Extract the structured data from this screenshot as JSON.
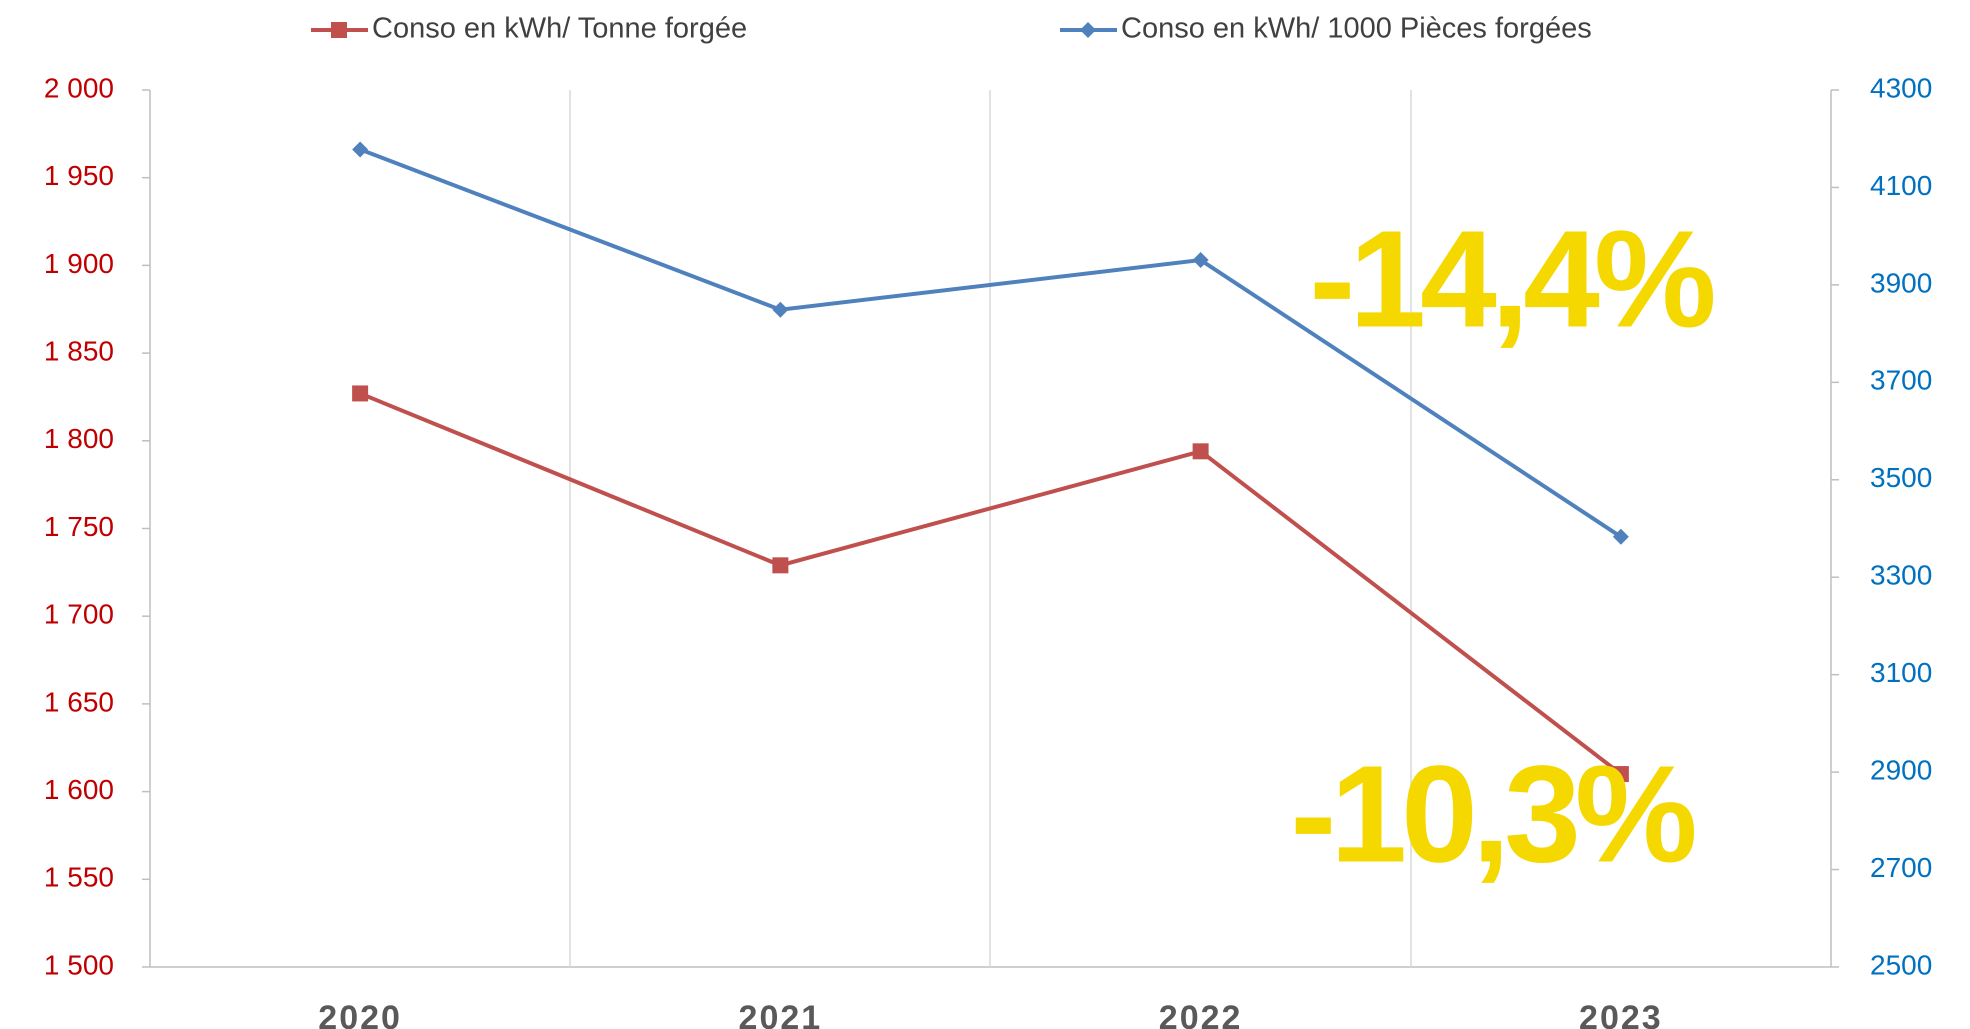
{
  "chart_data": {
    "type": "line",
    "categories": [
      "2020",
      "2021",
      "2022",
      "2023"
    ],
    "series": [
      {
        "name": "Conso en kWh/ Tonne forgée",
        "color": "#c0504d",
        "marker": "square",
        "values": [
          1827,
          1729,
          1794,
          1610
        ]
      },
      {
        "name": "Conso en kWh/ 1000 Pièces forgées",
        "color": "#4f81bd",
        "marker": "diamond",
        "axis": "y2",
        "values": [
          4178,
          3849,
          3951,
          3383
        ]
      }
    ],
    "ylim": [
      1500,
      2000
    ],
    "yticks": [
      {
        "value": 1500,
        "label": "1 500"
      },
      {
        "value": 1550,
        "label": "1 550"
      },
      {
        "value": 1600,
        "label": "1 600"
      },
      {
        "value": 1650,
        "label": "1 650"
      },
      {
        "value": 1700,
        "label": "1 700"
      },
      {
        "value": 1750,
        "label": "1 750"
      },
      {
        "value": 1800,
        "label": "1 800"
      },
      {
        "value": 1850,
        "label": "1 850"
      },
      {
        "value": 1900,
        "label": "1 900"
      },
      {
        "value": 1950,
        "label": "1 950"
      },
      {
        "value": 2000,
        "label": "2 000"
      }
    ],
    "ytick_color": "#c00000",
    "y2lim": [
      2500,
      4300
    ],
    "y2ticks": [
      2500,
      2700,
      2900,
      3100,
      3300,
      3500,
      3700,
      3900,
      4100,
      4300
    ],
    "y2tick_color": "#0070c0",
    "legend": "top",
    "annotations": [
      {
        "text": "-14,4%",
        "color": "#f5d800"
      },
      {
        "text": "-10,3%",
        "color": "#f5d800"
      }
    ]
  }
}
